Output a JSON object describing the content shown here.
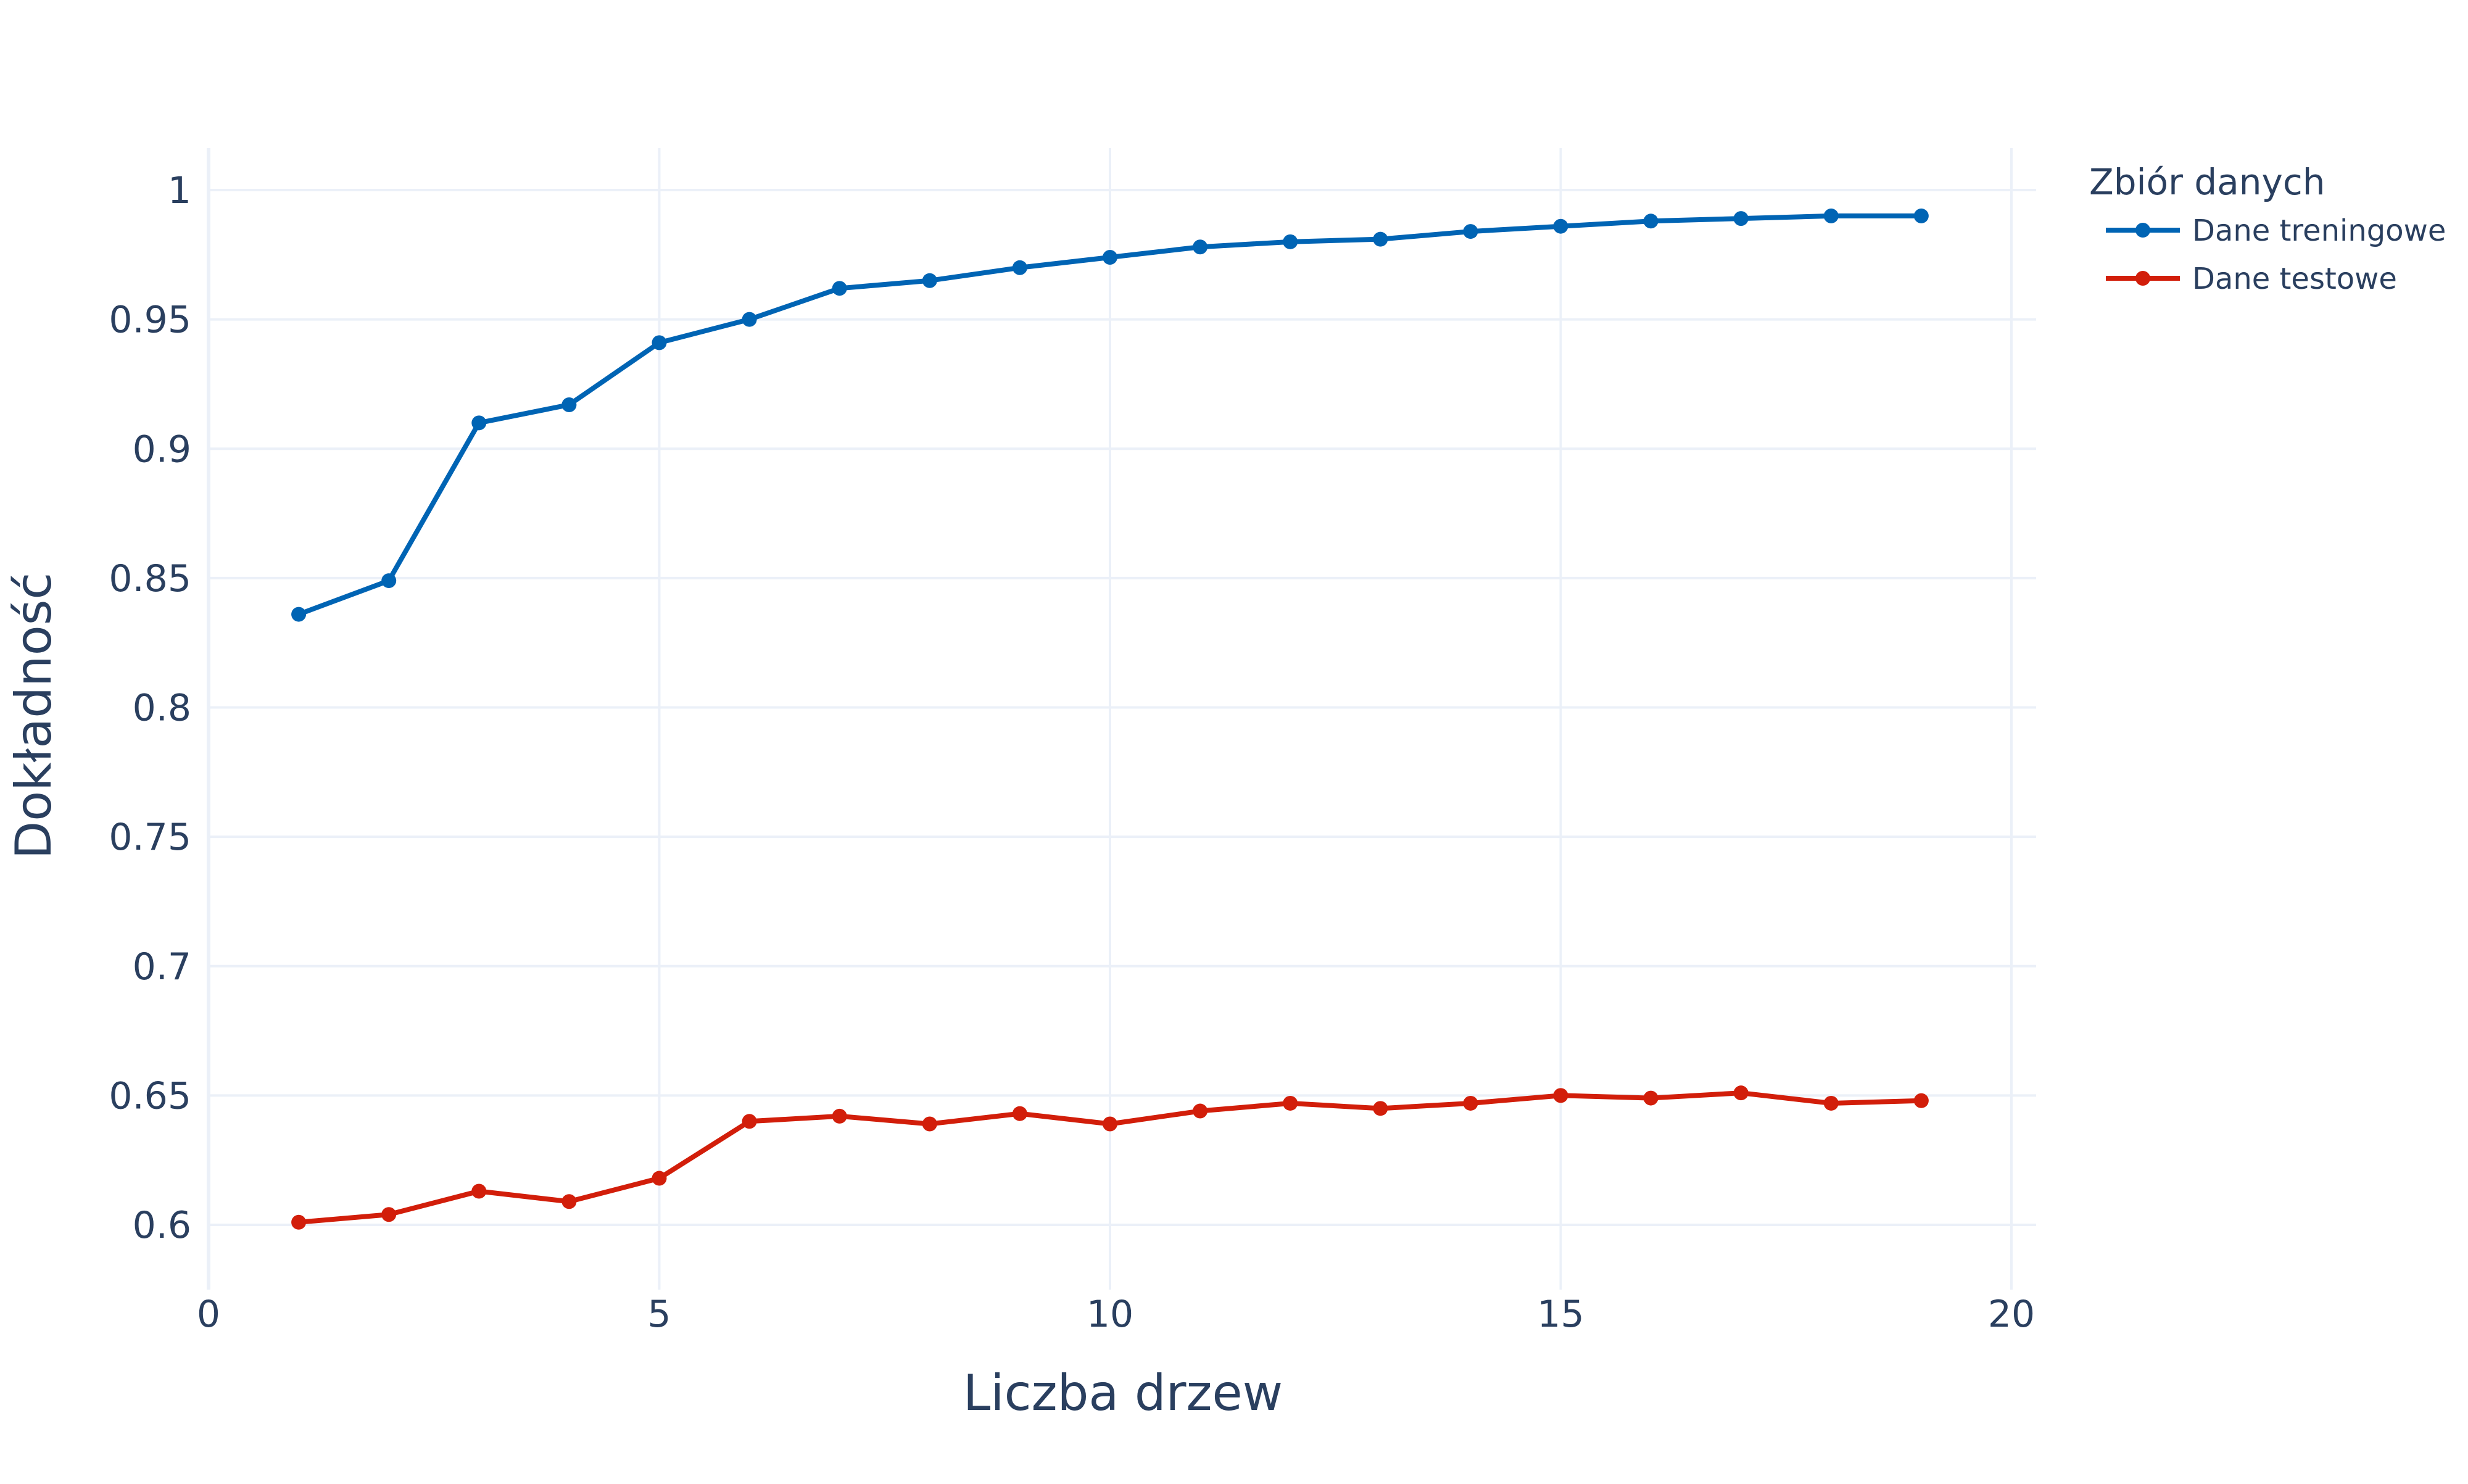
{
  "chart_data": {
    "type": "line",
    "title": "",
    "xlabel": "Liczba drzew",
    "ylabel": "Dokładność",
    "xlim": [
      0,
      20
    ],
    "ylim": [
      0.58,
      1.015
    ],
    "grid": true,
    "legend_position": "top-right",
    "x_ticks": [
      0,
      5,
      10,
      15,
      20
    ],
    "x_tick_labels": [
      "0",
      "5",
      "10",
      "15",
      "20"
    ],
    "y_ticks": [
      0.6,
      0.65,
      0.7,
      0.75,
      0.8,
      0.85,
      0.9,
      0.95,
      1.0
    ],
    "y_tick_labels": [
      "0.6",
      "0.65",
      "0.7",
      "0.75",
      "0.8",
      "0.85",
      "0.9",
      "0.95",
      "1"
    ],
    "legend_title": "Zbiór danych",
    "x": [
      1,
      2,
      3,
      4,
      5,
      6,
      7,
      8,
      9,
      10,
      11,
      12,
      13,
      14,
      15,
      16,
      17,
      18,
      19
    ],
    "series": [
      {
        "name": "Dane treningowe",
        "color": "#0064b4",
        "values": [
          0.836,
          0.849,
          0.91,
          0.917,
          0.941,
          0.95,
          0.962,
          0.965,
          0.97,
          0.974,
          0.978,
          0.98,
          0.981,
          0.984,
          0.986,
          0.988,
          0.989,
          0.99,
          0.99
        ]
      },
      {
        "name": "Dane testowe",
        "color": "#d21e0a",
        "values": [
          0.601,
          0.604,
          0.613,
          0.609,
          0.618,
          0.64,
          0.642,
          0.639,
          0.643,
          0.639,
          0.644,
          0.647,
          0.645,
          0.647,
          0.65,
          0.649,
          0.651,
          0.647,
          0.648
        ]
      }
    ]
  }
}
